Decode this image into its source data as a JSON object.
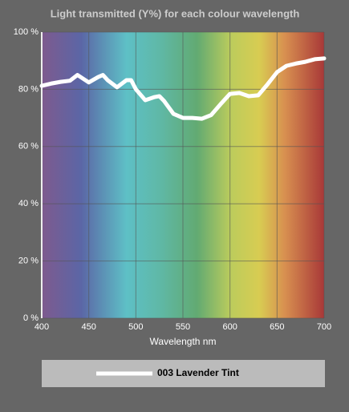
{
  "chart_data": {
    "type": "line",
    "title": "Light transmitted (Y%) for each colour wavelength",
    "x_label": "Wavelength nm",
    "x": [
      400,
      410,
      420,
      430,
      438,
      450,
      460,
      465,
      470,
      480,
      490,
      495,
      500,
      510,
      520,
      525,
      530,
      540,
      550,
      560,
      570,
      580,
      590,
      600,
      610,
      620,
      630,
      640,
      650,
      660,
      670,
      680,
      690,
      700
    ],
    "series": [
      {
        "name": "003 Lavender Tint",
        "color": "#ffffff",
        "values": [
          81.2,
          82,
          82.6,
          83,
          85,
          82.4,
          84.3,
          85,
          83.2,
          80.7,
          83.2,
          83.2,
          80,
          76.2,
          77.3,
          77.6,
          75.9,
          71.4,
          70,
          70,
          69.7,
          71,
          74.8,
          78.4,
          78.7,
          77.6,
          77.9,
          81.8,
          86,
          88.2,
          89,
          89.6,
          90.5,
          90.8
        ]
      }
    ],
    "xlim": [
      400,
      700
    ],
    "xticks": [
      400,
      450,
      500,
      550,
      600,
      650,
      700
    ],
    "ylim": [
      0,
      100
    ],
    "yticks": [
      {
        "value": 0,
        "label": "0 %"
      },
      {
        "value": 20,
        "label": "20 %"
      },
      {
        "value": 40,
        "label": "40 %"
      },
      {
        "value": 60,
        "label": "60 %"
      },
      {
        "value": 80,
        "label": "80 %"
      },
      {
        "value": 100,
        "label": "100 %"
      }
    ],
    "grid": true
  }
}
